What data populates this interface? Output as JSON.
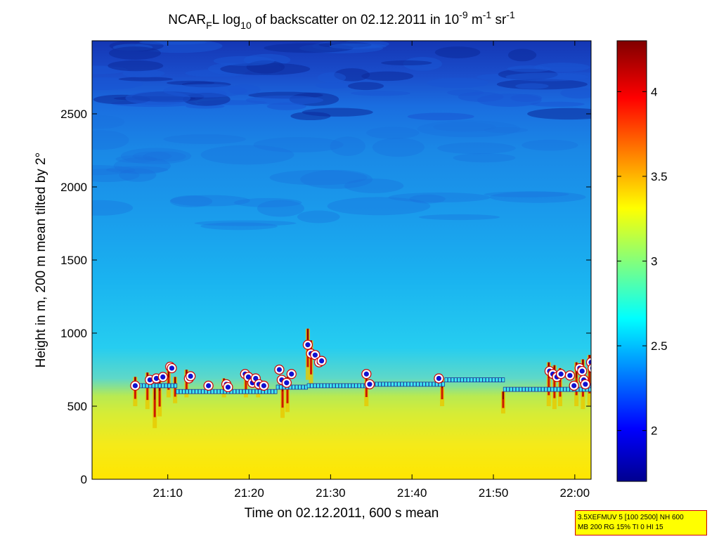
{
  "chart_data": {
    "type": "heatmap",
    "title": {
      "part1": "NCAR",
      "part1_sub": "F",
      "part2": "L log",
      "part2_sub": "10",
      "part3": " of backscatter on 02.12.2011 in 10",
      "sup1": "-9",
      "part4": " m",
      "sup2": "-1",
      "part5": " sr",
      "sup3": "-1"
    },
    "xlabel": "Time on 02.12.2011, 600 s mean",
    "ylabel": "Height in m, 200 m mean tilted by 2°",
    "xlim_minutes": [
      1260.7,
      1322.0
    ],
    "ylim": [
      0,
      3000
    ],
    "x_ticks": [
      "21:10",
      "21:20",
      "21:30",
      "21:40",
      "21:50",
      "22:00"
    ],
    "x_ticks_minutes": [
      1270,
      1280,
      1290,
      1300,
      1310,
      1320
    ],
    "y_ticks": [
      0,
      500,
      1000,
      1500,
      2000,
      2500
    ],
    "colorbar": {
      "range": [
        1.7,
        4.3
      ],
      "ticks": [
        2,
        2.5,
        3,
        3.5,
        4
      ],
      "tick_labels": [
        "2",
        "2.5",
        "3",
        "3.5",
        "4"
      ],
      "colormap": "jet"
    },
    "colors": {
      "near_ground": "#ffe600",
      "low_layer": "#c8ec40",
      "mid": "#22c8f0",
      "upper": "#1a7fe8",
      "top": "#1030b0",
      "marker_fill": "#1010d0",
      "marker_ring": "#ffffff",
      "marker_edge": "#cc0000",
      "line_fill": "#40e8f0"
    },
    "mean_layer_segments": [
      {
        "x0": 1265.9,
        "x1": 1271.2,
        "y": 640
      },
      {
        "x0": 1271.2,
        "x1": 1283.5,
        "y": 600
      },
      {
        "x0": 1283.5,
        "x1": 1287.3,
        "y": 630
      },
      {
        "x0": 1287.3,
        "x1": 1294.5,
        "y": 640
      },
      {
        "x0": 1294.5,
        "x1": 1304.2,
        "y": 650
      },
      {
        "x0": 1304.2,
        "x1": 1311.4,
        "y": 680
      },
      {
        "x0": 1311.4,
        "x1": 1322.0,
        "y": 615
      },
      {
        "x0": 1321.0,
        "x1": 1322.0,
        "y": 640
      }
    ],
    "cloud_base_points": [
      {
        "x": 1266.0,
        "y": 640
      },
      {
        "x": 1267.8,
        "y": 680
      },
      {
        "x": 1268.6,
        "y": 690
      },
      {
        "x": 1269.4,
        "y": 700
      },
      {
        "x": 1270.3,
        "y": 770
      },
      {
        "x": 1270.5,
        "y": 760
      },
      {
        "x": 1272.6,
        "y": 690
      },
      {
        "x": 1272.8,
        "y": 705
      },
      {
        "x": 1275.0,
        "y": 640
      },
      {
        "x": 1277.2,
        "y": 650
      },
      {
        "x": 1277.4,
        "y": 630
      },
      {
        "x": 1279.5,
        "y": 720
      },
      {
        "x": 1279.9,
        "y": 700
      },
      {
        "x": 1280.4,
        "y": 660
      },
      {
        "x": 1280.8,
        "y": 690
      },
      {
        "x": 1281.2,
        "y": 650
      },
      {
        "x": 1281.8,
        "y": 640
      },
      {
        "x": 1283.7,
        "y": 750
      },
      {
        "x": 1284.0,
        "y": 680
      },
      {
        "x": 1284.6,
        "y": 660
      },
      {
        "x": 1285.2,
        "y": 720
      },
      {
        "x": 1287.2,
        "y": 920
      },
      {
        "x": 1287.6,
        "y": 860
      },
      {
        "x": 1288.1,
        "y": 850
      },
      {
        "x": 1288.6,
        "y": 800
      },
      {
        "x": 1288.9,
        "y": 810
      },
      {
        "x": 1294.4,
        "y": 720
      },
      {
        "x": 1294.8,
        "y": 650
      },
      {
        "x": 1303.3,
        "y": 690
      },
      {
        "x": 1316.9,
        "y": 740
      },
      {
        "x": 1317.3,
        "y": 720
      },
      {
        "x": 1317.8,
        "y": 700
      },
      {
        "x": 1318.3,
        "y": 720
      },
      {
        "x": 1319.4,
        "y": 710
      },
      {
        "x": 1319.9,
        "y": 640
      },
      {
        "x": 1320.6,
        "y": 760
      },
      {
        "x": 1320.9,
        "y": 740
      },
      {
        "x": 1321.1,
        "y": 680
      },
      {
        "x": 1321.3,
        "y": 650
      },
      {
        "x": 1322.0,
        "y": 800
      },
      {
        "x": 1322.2,
        "y": 760
      }
    ],
    "precip_streaks": [
      {
        "x": 1266.0,
        "top": 700,
        "bottom": 500
      },
      {
        "x": 1267.5,
        "top": 730,
        "bottom": 480
      },
      {
        "x": 1268.4,
        "top": 650,
        "bottom": 350
      },
      {
        "x": 1269.0,
        "top": 700,
        "bottom": 430
      },
      {
        "x": 1270.1,
        "top": 770,
        "bottom": 560
      },
      {
        "x": 1270.9,
        "top": 700,
        "bottom": 520
      },
      {
        "x": 1272.3,
        "top": 750,
        "bottom": 560
      },
      {
        "x": 1276.9,
        "top": 690,
        "bottom": 560
      },
      {
        "x": 1279.6,
        "top": 730,
        "bottom": 560
      },
      {
        "x": 1281.1,
        "top": 700,
        "bottom": 560
      },
      {
        "x": 1284.1,
        "top": 700,
        "bottom": 420
      },
      {
        "x": 1284.7,
        "top": 700,
        "bottom": 460
      },
      {
        "x": 1287.2,
        "top": 1030,
        "bottom": 680
      },
      {
        "x": 1287.6,
        "top": 950,
        "bottom": 640
      },
      {
        "x": 1294.4,
        "top": 750,
        "bottom": 500
      },
      {
        "x": 1303.7,
        "top": 690,
        "bottom": 500
      },
      {
        "x": 1311.2,
        "top": 600,
        "bottom": 450
      },
      {
        "x": 1316.8,
        "top": 800,
        "bottom": 500
      },
      {
        "x": 1317.5,
        "top": 780,
        "bottom": 480
      },
      {
        "x": 1318.2,
        "top": 760,
        "bottom": 500
      },
      {
        "x": 1320.2,
        "top": 800,
        "bottom": 500
      },
      {
        "x": 1321.0,
        "top": 820,
        "bottom": 480
      },
      {
        "x": 1321.8,
        "top": 850,
        "bottom": 500
      }
    ]
  },
  "info_box": {
    "line1": "3.5XEFMUV 5 [100 2500] NH 600",
    "line2": "MB 200 RG 15% TI 0 HI 15"
  }
}
